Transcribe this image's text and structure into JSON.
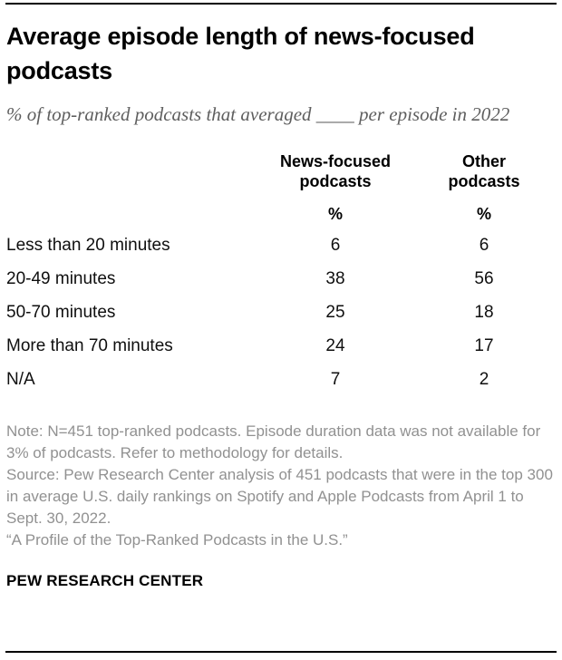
{
  "header": {
    "title": "Average episode length of news-focused podcasts",
    "subtitle": "% of top-ranked podcasts that averaged ____ per episode in 2022"
  },
  "chart_data": {
    "type": "table",
    "title": "Average episode length of news-focused podcasts",
    "subtitle": "% of top-ranked podcasts that averaged ____ per episode in 2022",
    "unit": "%",
    "categories": [
      "Less than 20 minutes",
      "20-49 minutes",
      "50-70 minutes",
      "More than 70 minutes",
      "N/A"
    ],
    "series": [
      {
        "name": "News-focused podcasts",
        "values": [
          6,
          38,
          25,
          24,
          7
        ]
      },
      {
        "name": "Other podcasts",
        "values": [
          6,
          56,
          18,
          17,
          2
        ]
      }
    ],
    "layout": {
      "grid": "off",
      "value_columns_centered": true
    }
  },
  "footer": {
    "note": "Note: N=451 top-ranked podcasts. Episode duration data was not available for 3% of podcasts. Refer to methodology for details.",
    "source": "Source: Pew Research Center analysis of 451 podcasts that were in the top 300 in average U.S. daily rankings on Spotify and Apple Podcasts from April 1 to Sept. 30, 2022.",
    "report": "“A Profile of the Top-Ranked Podcasts in the U.S.”",
    "brand": "PEW RESEARCH CENTER"
  },
  "colors": {
    "rule": "#000000",
    "title_text": "#000000",
    "subtitle_text": "#5e5e5e",
    "note_text": "#919191",
    "background": "#ffffff"
  }
}
